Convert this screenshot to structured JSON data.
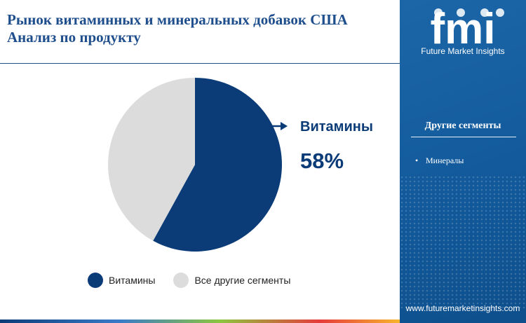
{
  "header": {
    "title_line1": "Рынок витаминных и минеральных добавок США",
    "title_line2": "Анализ по продукту"
  },
  "colors": {
    "primary": "#0b3c78",
    "other": "#dcdcdc",
    "sidebar": "#1c66a8"
  },
  "chart_data": {
    "type": "pie",
    "categories": [
      "Витамины",
      "Все другие сегменты"
    ],
    "values": [
      58,
      42
    ],
    "unit": "%",
    "highlight": {
      "label": "Витамины",
      "value_text": "58%"
    },
    "legend": [
      "Витамины",
      "Все другие сегменты"
    ],
    "legend_position": "bottom"
  },
  "sidebar": {
    "logo_text": "fmi",
    "logo_caption": "Future Market Insights",
    "other_segments_title": "Другие сегменты",
    "other_segments": [
      "Минералы"
    ],
    "url": "www.futuremarketinsights.com"
  }
}
